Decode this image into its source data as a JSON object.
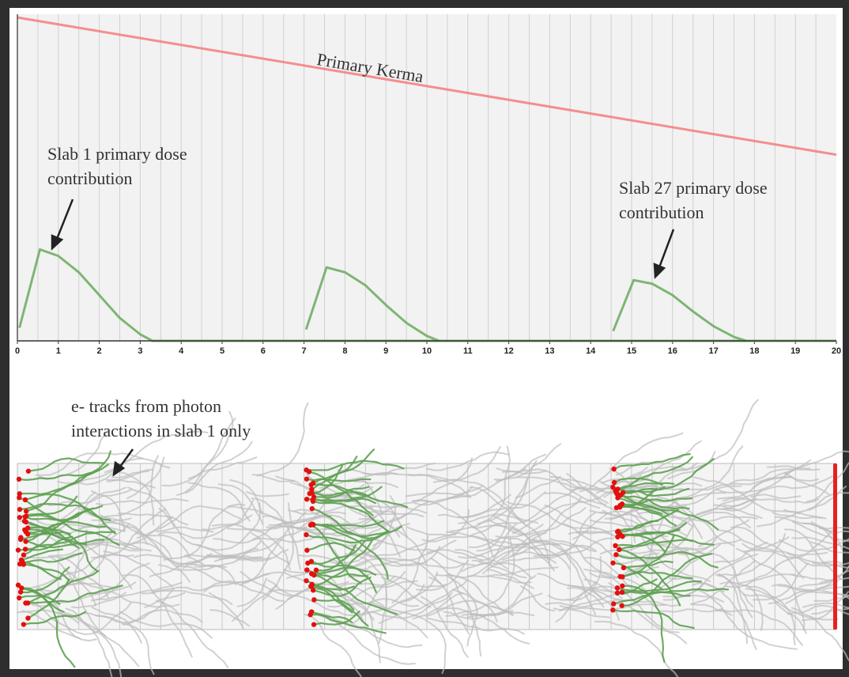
{
  "chart_data": {
    "type": "line",
    "xlim": [
      0,
      20
    ],
    "xticks": [
      0,
      1,
      2,
      3,
      4,
      5,
      6,
      7,
      8,
      9,
      10,
      11,
      12,
      13,
      14,
      15,
      16,
      17,
      18,
      19,
      20
    ],
    "ylim": [
      0,
      1
    ],
    "xgrid": [
      0.5,
      1,
      1.5,
      2,
      2.5,
      3,
      3.5,
      4,
      4.5,
      5,
      5.5,
      6,
      6.5,
      7,
      7.5,
      8,
      8.5,
      9,
      9.5,
      10,
      10.5,
      11,
      11.5,
      12,
      12.5,
      13,
      13.5,
      14,
      14.5,
      15,
      15.5,
      16,
      16.5,
      17,
      17.5,
      18,
      18.5,
      19,
      19.5
    ],
    "series": [
      {
        "color": "#f47c7c",
        "x": [
          0,
          20
        ],
        "values": [
          0.99,
          0.57
        ]
      },
      {
        "color": "#6aaa5e",
        "x": [
          0.05,
          0.55,
          1.0,
          1.5,
          2.0,
          2.5,
          3.0,
          3.3,
          20
        ],
        "values": [
          0.04,
          0.28,
          0.26,
          0.21,
          0.14,
          0.07,
          0.02,
          0,
          0
        ]
      },
      {
        "color": "#6aaa5e",
        "x": [
          7.05,
          7.55,
          8.0,
          8.5,
          9.0,
          9.5,
          10.0,
          10.3
        ],
        "values": [
          0.035,
          0.225,
          0.21,
          0.17,
          0.11,
          0.055,
          0.015,
          0
        ]
      },
      {
        "color": "#6aaa5e",
        "x": [
          14.55,
          15.05,
          15.5,
          16.0,
          16.5,
          17.0,
          17.5,
          17.8
        ],
        "values": [
          0.03,
          0.186,
          0.175,
          0.14,
          0.09,
          0.045,
          0.012,
          0
        ]
      }
    ],
    "annotations": {
      "kerma": "Primary Kerma",
      "slab1": [
        "Slab 1 primary dose",
        "contribution"
      ],
      "slab27": [
        "Slab 27 primary dose",
        "contribution"
      ],
      "tracks": [
        "e- tracks from photon",
        "interactions in slab 1 only"
      ]
    }
  }
}
